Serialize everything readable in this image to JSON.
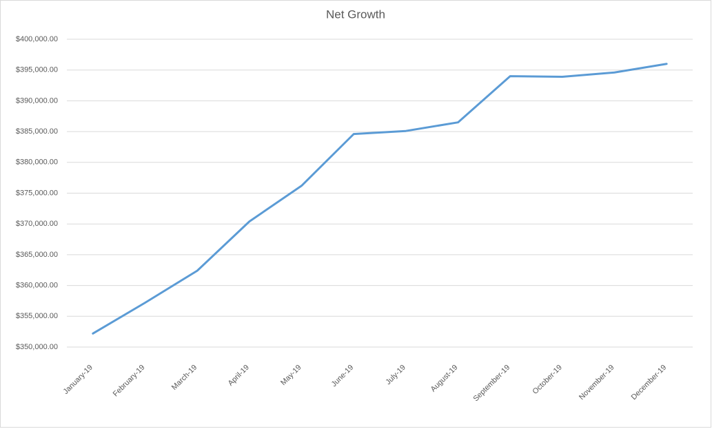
{
  "chart_data": {
    "type": "line",
    "title": "Net Growth",
    "categories": [
      "January-19",
      "February-19",
      "March-19",
      "April-19",
      "May-19",
      "June-19",
      "July-19",
      "August-19",
      "September-19",
      "October-19",
      "November-19",
      "December-19"
    ],
    "series": [
      {
        "name": "Net Growth",
        "color": "#5b9bd5",
        "values": [
          352200,
          357200,
          362400,
          370400,
          376200,
          384600,
          385100,
          386500,
          394000,
          393900,
          394600,
          396000
        ]
      }
    ],
    "ylim": [
      350000,
      400000
    ],
    "yticks": [
      {
        "value": 350000,
        "label": "$350,000.00"
      },
      {
        "value": 355000,
        "label": "$355,000.00"
      },
      {
        "value": 360000,
        "label": "$360,000.00"
      },
      {
        "value": 365000,
        "label": "$365,000.00"
      },
      {
        "value": 370000,
        "label": "$370,000.00"
      },
      {
        "value": 375000,
        "label": "$375,000.00"
      },
      {
        "value": 380000,
        "label": "$380,000.00"
      },
      {
        "value": 385000,
        "label": "$385,000.00"
      },
      {
        "value": 390000,
        "label": "$390,000.00"
      },
      {
        "value": 395000,
        "label": "$395,000.00"
      },
      {
        "value": 400000,
        "label": "$400,000.00"
      }
    ],
    "grid": true
  }
}
